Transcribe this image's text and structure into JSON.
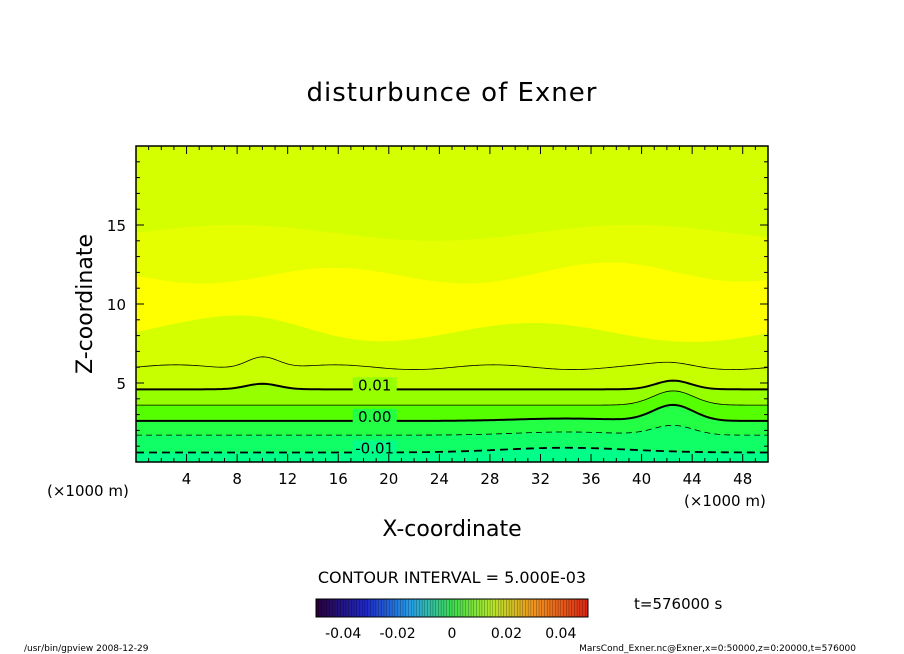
{
  "chart_data": {
    "type": "heatmap",
    "title": "disturbunce of Exner",
    "xlabel": "X-coordinate",
    "ylabel": "Z-coordinate",
    "x_unit_left": "(×1000 m)",
    "x_unit_right": "(×1000 m)",
    "xlim": [
      0,
      50
    ],
    "ylim": [
      0,
      20
    ],
    "x_ticks": [
      "4",
      "8",
      "12",
      "16",
      "20",
      "24",
      "28",
      "32",
      "36",
      "40",
      "44",
      "48"
    ],
    "x_tick_values": [
      4,
      8,
      12,
      16,
      20,
      24,
      28,
      32,
      36,
      40,
      44,
      48
    ],
    "y_ticks": [
      "5",
      "10",
      "15"
    ],
    "y_tick_values": [
      5,
      10,
      15
    ],
    "contour_labels": [
      {
        "text": "0.01",
        "x": 17.3,
        "z": 4.6
      },
      {
        "text": "0.00",
        "x": 17.3,
        "z": 2.6
      },
      {
        "text": "-0.01",
        "x": 17.3,
        "z": 0.6
      }
    ],
    "contour_interval_text": "CONTOUR INTERVAL = 5.000E-03",
    "time_text": "t=576000 s",
    "colorbar": {
      "min": -0.05,
      "max": 0.05,
      "tick_labels": [
        "-0.04",
        "-0.02",
        "0",
        "0.02",
        "0.04"
      ],
      "tick_values": [
        -0.04,
        -0.02,
        0,
        0.02,
        0.04
      ]
    },
    "footer_left": "/usr/bin/gpview  2008-12-29",
    "footer_right": "MarsCond_Exner.nc@Exner,x=0:50000,z=0:20000,t=576000",
    "colors": {
      "top": "#d4ff00",
      "band_light": "#e6ff00",
      "mid": "#ffff00",
      "low1": "#c8ff00",
      "low2": "#96ff00",
      "low3": "#55ff00",
      "low4": "#22ff44",
      "bottom": "#00ff88"
    }
  }
}
